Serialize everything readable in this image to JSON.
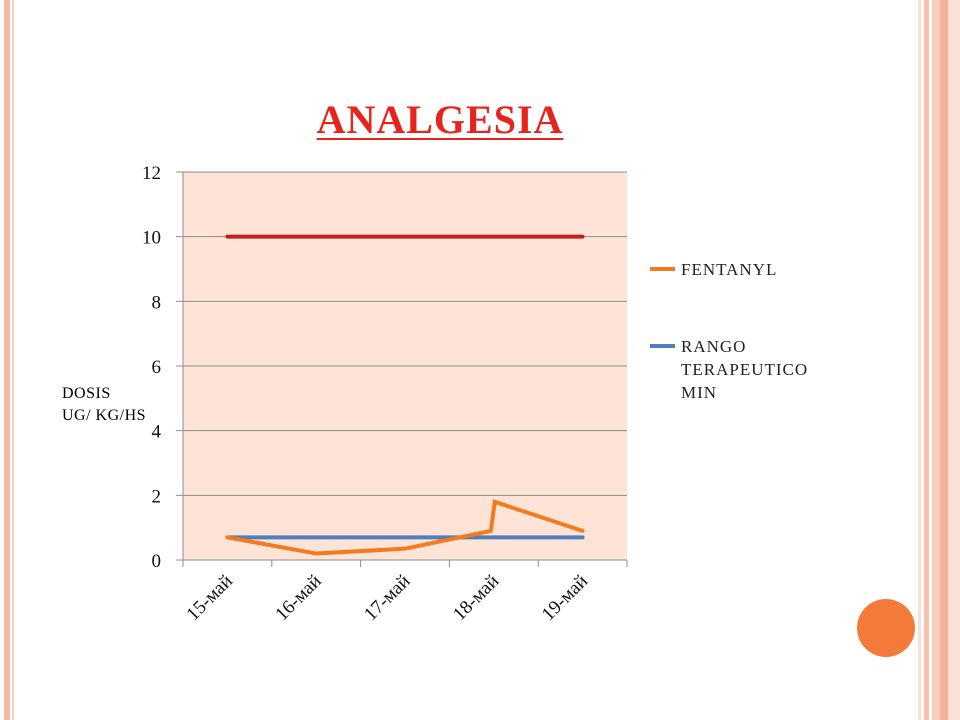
{
  "slide": {
    "title": "ANALGESIA",
    "ylabel_line1": "DOSIS",
    "ylabel_line2": "UG/ KG/HS"
  },
  "colors": {
    "plot_bg": "#fde4d6",
    "fentanyl": "#f47a1f",
    "rango_min": "#4f7dbd",
    "rango_max": "#c0211f",
    "title": "#e8231c",
    "accent_dot": "#f47a3a"
  },
  "chart_data": {
    "type": "line",
    "title": "ANALGESIA",
    "ylabel": "DOSIS UG/ KG/HS",
    "ylim": [
      0,
      12
    ],
    "yticks": [
      0,
      2,
      4,
      6,
      8,
      10,
      12
    ],
    "categories": [
      "15-май",
      "16-май",
      "17-май",
      "18-май",
      "19-май"
    ],
    "grid": true,
    "legend_position": "right",
    "series": [
      {
        "name": "FENTANYL",
        "color": "#f47a1f",
        "points": [
          {
            "x": "15-май",
            "y": 0.7
          },
          {
            "x": "16-май",
            "y": 0.2
          },
          {
            "x": "17-май",
            "y": 0.35
          },
          {
            "x": "18-май",
            "y": 0.9
          },
          {
            "x": "18-май",
            "y": 1.8
          },
          {
            "x": "19-май",
            "y": 0.9
          }
        ]
      },
      {
        "name": "RANGO TERAPEUTICO MIN",
        "color": "#4f7dbd",
        "points": [
          {
            "x": "15-май",
            "y": 0.7
          },
          {
            "x": "19-май",
            "y": 0.7
          }
        ]
      },
      {
        "name": "",
        "color": "#c0211f",
        "points": [
          {
            "x": "15-май",
            "y": 10
          },
          {
            "x": "19-май",
            "y": 10
          }
        ]
      }
    ]
  },
  "legend": {
    "items": [
      {
        "label": "FENTANYL",
        "color": "#f47a1f"
      },
      {
        "label_lines": [
          "RANGO",
          "TERAPEUTICO",
          "MIN"
        ],
        "color": "#4f7dbd"
      }
    ]
  }
}
